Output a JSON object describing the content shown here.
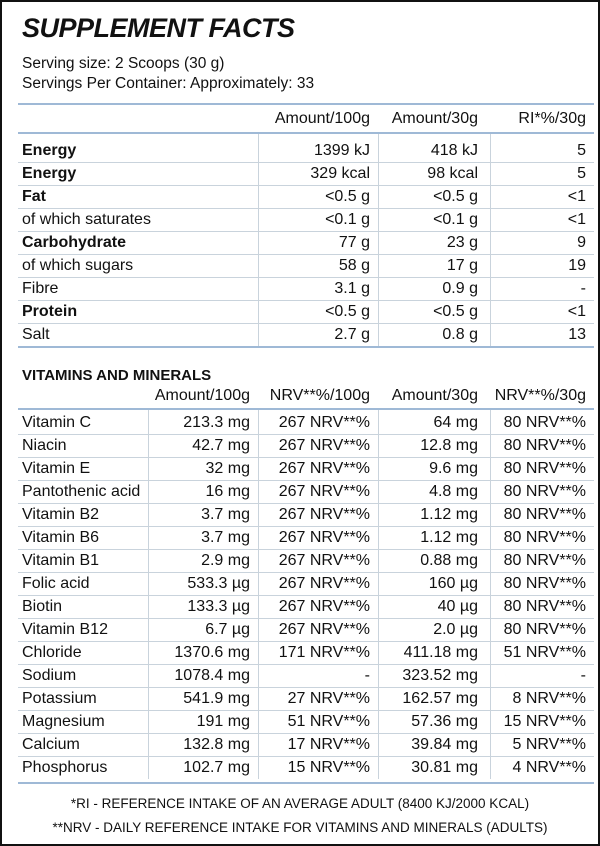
{
  "title": "SUPPLEMENT FACTS",
  "serving": [
    "Serving size: 2 Scoops (30 g)",
    "Servings Per Container: Approximately: 33"
  ],
  "nutrition": {
    "header": [
      "Amount/100g",
      "Amount/30g",
      "RI*%/30g"
    ],
    "rows": [
      {
        "cells": [
          "Energy",
          "1399 kJ",
          "418 kJ",
          "5"
        ],
        "bold": true
      },
      {
        "cells": [
          "Energy",
          "329 kcal",
          "98 kcal",
          "5"
        ],
        "bold": true
      },
      {
        "cells": [
          "Fat",
          "<0.5 g",
          "<0.5 g",
          "<1"
        ],
        "bold": true
      },
      {
        "cells": [
          "of which saturates",
          "<0.1 g",
          "<0.1 g",
          "<1"
        ]
      },
      {
        "cells": [
          "Carbohydrate",
          "77 g",
          "23 g",
          "9"
        ],
        "bold": true
      },
      {
        "cells": [
          "of which sugars",
          "58 g",
          "17 g",
          "19"
        ]
      },
      {
        "cells": [
          "Fibre",
          "3.1 g",
          "0.9 g",
          "-"
        ]
      },
      {
        "cells": [
          "Protein",
          "<0.5 g",
          "<0.5 g",
          "<1"
        ],
        "bold": true
      },
      {
        "cells": [
          "Salt",
          "2.7 g",
          "0.8 g",
          "13"
        ]
      }
    ]
  },
  "vitamins": {
    "title": "VITAMINS AND MINERALS",
    "header": [
      "Amount/100g",
      "NRV**%/100g",
      "Amount/30g",
      "NRV**%/30g"
    ],
    "rows": [
      [
        "Vitamin C",
        "213.3 mg",
        "267 NRV**%",
        "64 mg",
        "80 NRV**%"
      ],
      [
        "Niacin",
        "42.7 mg",
        "267 NRV**%",
        "12.8 mg",
        "80 NRV**%"
      ],
      [
        "Vitamin E",
        "32 mg",
        "267 NRV**%",
        "9.6 mg",
        "80 NRV**%"
      ],
      [
        "Pantothenic acid",
        "16 mg",
        "267 NRV**%",
        "4.8 mg",
        "80 NRV**%"
      ],
      [
        "Vitamin B2",
        "3.7 mg",
        "267 NRV**%",
        "1.12 mg",
        "80 NRV**%"
      ],
      [
        "Vitamin B6",
        "3.7 mg",
        "267 NRV**%",
        "1.12 mg",
        "80 NRV**%"
      ],
      [
        "Vitamin B1",
        "2.9 mg",
        "267 NRV**%",
        "0.88 mg",
        "80 NRV**%"
      ],
      [
        "Folic acid",
        "533.3 µg",
        "267 NRV**%",
        "160 µg",
        "80 NRV**%"
      ],
      [
        "Biotin",
        "133.3 µg",
        "267 NRV**%",
        "40 µg",
        "80 NRV**%"
      ],
      [
        "Vitamin B12",
        "6.7 µg",
        "267 NRV**%",
        "2.0 µg",
        "80 NRV**%"
      ],
      [
        "Chloride",
        "1370.6 mg",
        "171 NRV**%",
        "411.18 mg",
        "51 NRV**%"
      ],
      [
        "Sodium",
        "1078.4 mg",
        "-",
        "323.52 mg",
        "-"
      ],
      [
        "Potassium",
        "541.9 mg",
        "27 NRV**%",
        "162.57 mg",
        "8 NRV**%"
      ],
      [
        "Magnesium",
        "191 mg",
        "51 NRV**%",
        "57.36 mg",
        "15 NRV**%"
      ],
      [
        "Calcium",
        "132.8 mg",
        "17 NRV**%",
        "39.84 mg",
        "5 NRV**%"
      ],
      [
        "Phosphorus",
        "102.7 mg",
        "15 NRV**%",
        "30.81 mg",
        "4 NRV**%"
      ]
    ]
  },
  "footnotes": [
    "*RI - REFERENCE INTAKE OF AN AVERAGE ADULT (8400 KJ/2000 KCAL)",
    "**NRV - DAILY REFERENCE INTAKE FOR VITAMINS AND MINERALS (ADULTS)"
  ]
}
